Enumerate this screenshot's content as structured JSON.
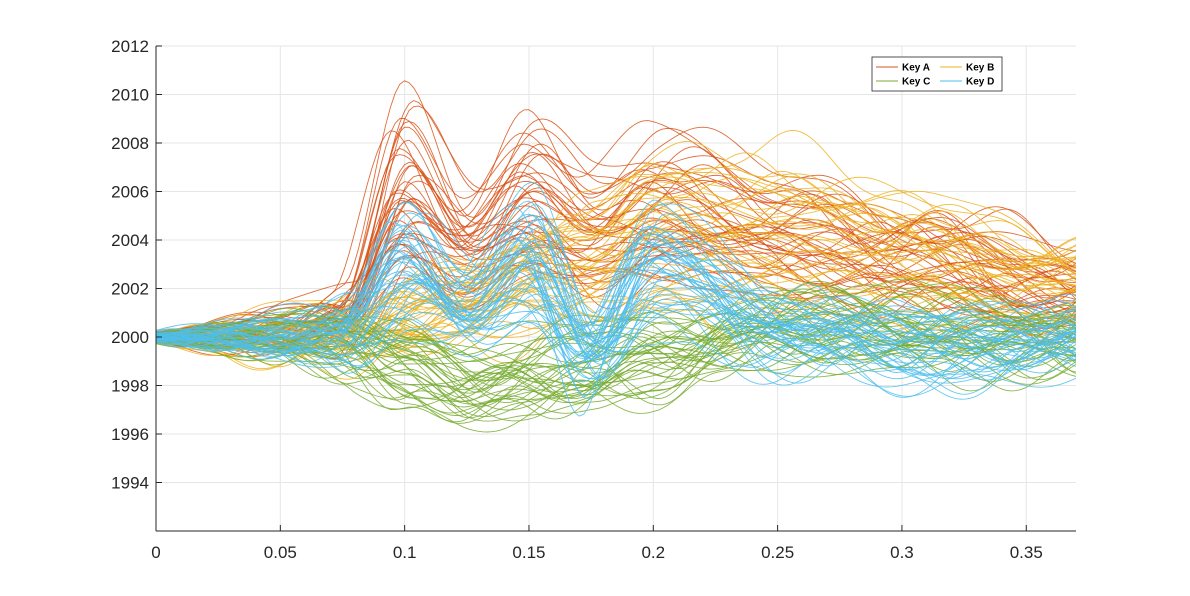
{
  "chart_data": {
    "type": "line",
    "title": "",
    "xlabel": "",
    "ylabel": "",
    "xlim": [
      0,
      0.37
    ],
    "ylim": [
      1992,
      2012
    ],
    "x_ticks": [
      0,
      0.05,
      0.1,
      0.15,
      0.2,
      0.25,
      0.3,
      0.35
    ],
    "x_tick_labels": [
      "0",
      "0.05",
      "0.1",
      "0.15",
      "0.2",
      "0.25",
      "0.3",
      "0.35"
    ],
    "y_ticks": [
      1994,
      1996,
      1998,
      2000,
      2002,
      2004,
      2006,
      2008,
      2010,
      2012
    ],
    "y_tick_labels": [
      "1994",
      "1996",
      "1998",
      "2000",
      "2002",
      "2004",
      "2006",
      "2008",
      "2010",
      "2012"
    ],
    "grid": true,
    "legend_position": "top-right",
    "legend_columns": 2,
    "lines_per_series": 40,
    "series": [
      {
        "name": "Key A",
        "color": "#D95319",
        "x": [
          0,
          0.05,
          0.075,
          0.1,
          0.125,
          0.15,
          0.175,
          0.2,
          0.25,
          0.3,
          0.37
        ],
        "values": [
          2000,
          2000.2,
          2001.2,
          2007.5,
          2004.5,
          2007.0,
          2005.0,
          2006.3,
          2005.0,
          2004.0,
          2002.3
        ]
      },
      {
        "name": "Key B",
        "color": "#EDB120",
        "x": [
          0,
          0.05,
          0.075,
          0.1,
          0.125,
          0.15,
          0.175,
          0.2,
          0.25,
          0.3,
          0.37
        ],
        "values": [
          2000,
          1999.8,
          2000.2,
          2001.0,
          2002.0,
          2003.0,
          2004.0,
          2005.5,
          2005.5,
          2004.5,
          2002.5
        ]
      },
      {
        "name": "Key C",
        "color": "#77AC30",
        "x": [
          0,
          0.05,
          0.075,
          0.1,
          0.125,
          0.15,
          0.175,
          0.2,
          0.25,
          0.3,
          0.37
        ],
        "values": [
          2000,
          2000,
          1999.8,
          1998.5,
          1997.5,
          1998.0,
          1998.5,
          1999.0,
          2000.5,
          2000.3,
          2000.0
        ]
      },
      {
        "name": "Key D",
        "color": "#4DBEEE",
        "x": [
          0,
          0.05,
          0.075,
          0.1,
          0.125,
          0.15,
          0.175,
          0.2,
          0.25,
          0.3,
          0.37
        ],
        "values": [
          2000,
          2000,
          2000.5,
          2004.0,
          2001.5,
          2004.5,
          1999.2,
          2004.0,
          2000.5,
          1999.5,
          2000.0
        ]
      }
    ]
  }
}
